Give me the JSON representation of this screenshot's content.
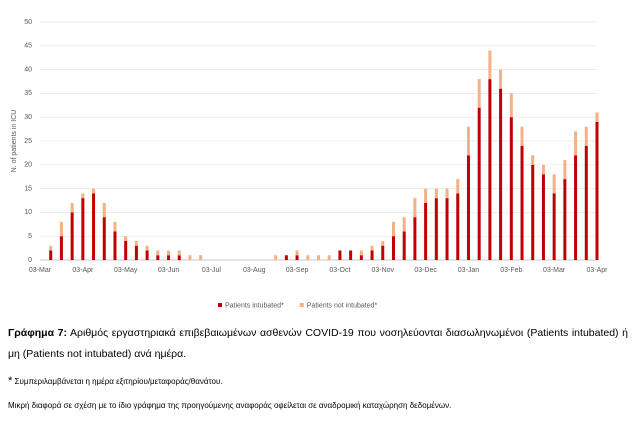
{
  "chart_data": {
    "type": "bar",
    "stacked": true,
    "ylabel": "N. of patients in ICU",
    "categories": [
      "03-Mar",
      null,
      null,
      null,
      "03-Apr",
      null,
      null,
      null,
      "03-May",
      null,
      null,
      null,
      "03-Jun",
      null,
      null,
      null,
      "03-Jul",
      null,
      null,
      null,
      "03-Aug",
      null,
      null,
      null,
      "03-Sep",
      null,
      null,
      null,
      "03-Oct",
      null,
      null,
      null,
      "03-Nov",
      null,
      null,
      null,
      "03-Dec",
      null,
      null,
      null,
      "03-Jan",
      null,
      null,
      null,
      "03-Feb",
      null,
      null,
      null,
      "03-Mar",
      null,
      null,
      null,
      "03-Apr"
    ],
    "series": [
      {
        "name": "Patients intubated*",
        "color": "#c00000",
        "values": [
          0,
          2,
          5,
          10,
          13,
          14,
          9,
          6,
          4,
          3,
          2,
          1,
          1,
          1,
          0,
          0,
          0,
          0,
          0,
          0,
          0,
          0,
          0,
          1,
          1,
          0,
          0,
          0,
          2,
          2,
          1,
          2,
          3,
          5,
          6,
          9,
          12,
          13,
          13,
          14,
          22,
          32,
          38,
          36,
          30,
          24,
          20,
          18,
          14,
          17,
          22,
          24,
          29
        ]
      },
      {
        "name": "Patients not intubated*",
        "color": "#f4b183",
        "values": [
          0,
          1,
          3,
          2,
          1,
          1,
          3,
          2,
          1,
          1,
          1,
          1,
          1,
          1,
          1,
          1,
          0,
          0,
          0,
          0,
          0,
          0,
          1,
          0,
          1,
          1,
          1,
          1,
          0,
          0,
          1,
          1,
          1,
          3,
          3,
          4,
          3,
          2,
          2,
          3,
          6,
          6,
          6,
          4,
          5,
          4,
          2,
          2,
          4,
          4,
          5,
          4,
          2
        ]
      }
    ],
    "ylim": [
      0,
      50
    ],
    "yticks": [
      0,
      5,
      10,
      15,
      20,
      25,
      30,
      35,
      40,
      45,
      50
    ],
    "grid": true,
    "legend": "bottom"
  },
  "caption": {
    "label": "Γράφημα 7:",
    "text": "Αριθμός εργαστηριακά επιβεβαιωμένων ασθενών COVID-19 που νοσηλεύονται διασωληνωμένοι (Patients intubated) ή μη (Patients not intubated) ανά ημέρα.",
    "footnote_mark": "*",
    "footnote": "Συμπεριλαμβάνεται η ημέρα εξιτηρίου/μεταφοράς/θανάτου.",
    "note": "Μικρή διαφορά σε σχέση με το ίδιο γράφημα της προηγούμενης αναφοράς οφείλεται σε αναδρομική καταχώρηση δεδομένων."
  }
}
